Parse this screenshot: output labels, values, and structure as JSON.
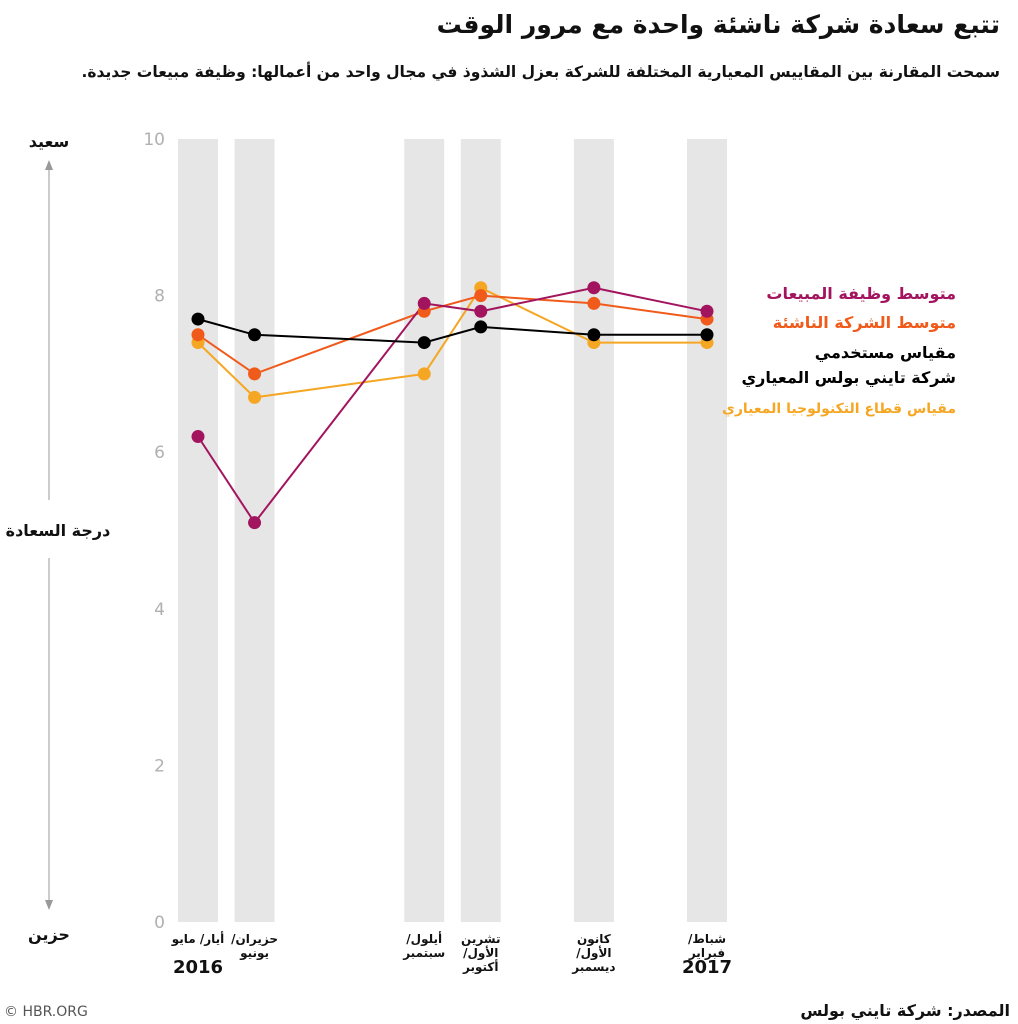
{
  "chart_data": {
    "type": "line",
    "title": "تتبع سعادة شركة ناشئة واحدة مع مرور الوقت",
    "subtitle": "سمحت المقارنة بين المقاييس المعيارية المختلفة للشركة بعزل الشذوذ في مجال واحد من أعمالها: وظيفة مبيعات جديدة.",
    "ylabel": "درجة السعادة",
    "ylabel_top": "سعيد",
    "ylabel_bottom": "حزين",
    "ylim": [
      0,
      10
    ],
    "yticks": [
      "0",
      "2",
      "4",
      "6",
      "8",
      "10"
    ],
    "grid": false,
    "legend_position": "right",
    "x": [
      "2016-05",
      "2016-06",
      "2016-09",
      "2016-10",
      "2016-12",
      "2017-02"
    ],
    "x_labels": [
      [
        "أيار/ مايو"
      ],
      [
        "حزيران/",
        "يونيو"
      ],
      [
        "أيلول/",
        "سبتمبر"
      ],
      [
        "تشرين",
        "الأول/",
        "أكتوبر"
      ],
      [
        "كانون",
        "الأول/",
        "ديسمبر"
      ],
      [
        "شباط/",
        "فبراير"
      ]
    ],
    "year_labels": [
      {
        "x": "2016-05",
        "label": "2016"
      },
      {
        "x": "2017-02",
        "label": "2017"
      }
    ],
    "series": [
      {
        "name": "مقياس قطاع التكنولوجيا المعياري",
        "color": "#f5a623",
        "values": [
          7.4,
          6.7,
          7.0,
          8.1,
          7.4,
          7.4
        ]
      },
      {
        "name": "متوسط الشركة الناشئة",
        "color": "#f05a1a",
        "values": [
          7.5,
          7.0,
          7.8,
          8.0,
          7.9,
          7.7
        ]
      },
      {
        "name": "متوسط وظيفة المبيعات",
        "color": "#a3145e",
        "values": [
          6.2,
          5.1,
          7.9,
          7.8,
          8.1,
          7.8
        ]
      },
      {
        "name": "مقياس مستخدمي شركة تايني بولس المعياري",
        "color": "#000000",
        "values": [
          7.7,
          7.5,
          7.4,
          7.6,
          7.5,
          7.5
        ]
      }
    ]
  },
  "legend": [
    {
      "lines": [
        "متوسط وظيفة المبيعات"
      ],
      "color": "#a3145e"
    },
    {
      "lines": [
        "متوسط الشركة الناشئة"
      ],
      "color": "#f05a1a"
    },
    {
      "lines": [
        "مقياس مستخدمي",
        "شركة تايني بولس المعياري"
      ],
      "color": "#000000"
    },
    {
      "lines": [
        "مقياس قطاع التكنولوجيا المعياري"
      ],
      "color": "#f5a623"
    }
  ],
  "footer": {
    "copyright": "© HBR.ORG",
    "source": "المصدر: شركة تايني بولس"
  }
}
